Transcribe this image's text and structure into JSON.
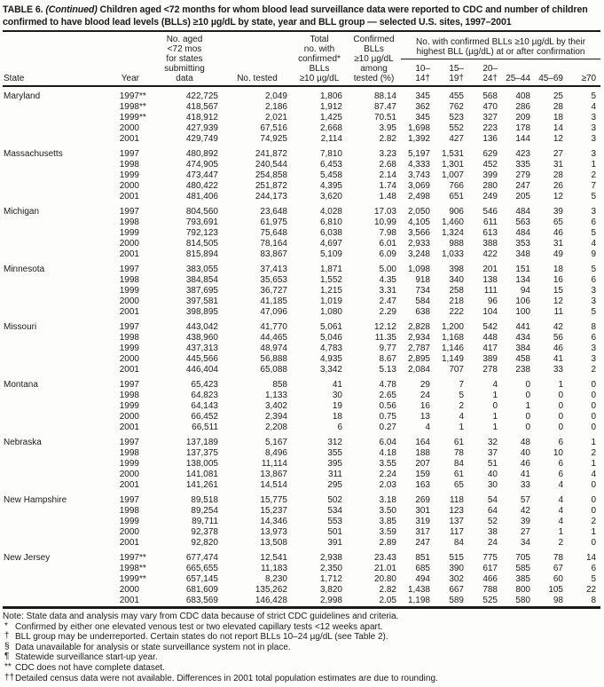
{
  "title": {
    "prefix": "TABLE 6.",
    "continued": "(Continued)",
    "rest": "Children aged <72 months for whom blood lead surveillance data were reported to CDC and number of children confirmed to have blood lead levels (BLLs) ≥10 µg/dL by state, year and BLL group — selected U.S. sites, 1997–2001"
  },
  "header": {
    "state": "State",
    "year": "Year",
    "population": "No. aged\n<72 mos\nfor states\nsubmitting\ndata",
    "tested": "No. tested",
    "total_confirmed": "Total\nno. with\nconfirmed*\nBLLs\n≥10 µg/dL",
    "pct_confirmed": "Confirmed\nBLLs\n≥10 µg/dL\namong\ntested (%)",
    "bll_group_header": "No. with confirmed BLLs ≥10 µg/dL by their\nhighest BLL (µg/dL) at or after confirmation",
    "bll_groups": [
      "10–14†",
      "15–19†",
      "20–24†",
      "25–44",
      "45–69",
      "≥70"
    ]
  },
  "states": [
    {
      "name": "Maryland",
      "rows": [
        {
          "year": "1997",
          "mark": "**",
          "cells": [
            "422,725",
            "2,049",
            "1,806",
            "88.14",
            "345",
            "455",
            "568",
            "408",
            "25",
            "5"
          ]
        },
        {
          "year": "1998",
          "mark": "**",
          "cells": [
            "418,567",
            "2,186",
            "1,912",
            "87.47",
            "362",
            "762",
            "470",
            "286",
            "28",
            "4"
          ]
        },
        {
          "year": "1999",
          "mark": "**",
          "cells": [
            "418,912",
            "2,021",
            "1,425",
            "70.51",
            "345",
            "523",
            "327",
            "209",
            "18",
            "3"
          ]
        },
        {
          "year": "2000",
          "mark": "",
          "cells": [
            "427,939",
            "67,516",
            "2,668",
            "3.95",
            "1,698",
            "552",
            "223",
            "178",
            "14",
            "3"
          ]
        },
        {
          "year": "2001",
          "mark": "",
          "cells": [
            "429,749",
            "74,925",
            "2,114",
            "2.82",
            "1,392",
            "427",
            "136",
            "144",
            "12",
            "3"
          ]
        }
      ]
    },
    {
      "name": "Massachusetts",
      "rows": [
        {
          "year": "1997",
          "mark": "",
          "cells": [
            "480,892",
            "241,872",
            "7,810",
            "3.23",
            "5,197",
            "1,531",
            "629",
            "423",
            "27",
            "3"
          ]
        },
        {
          "year": "1998",
          "mark": "",
          "cells": [
            "474,905",
            "240,544",
            "6,453",
            "2.68",
            "4,333",
            "1,301",
            "452",
            "335",
            "31",
            "1"
          ]
        },
        {
          "year": "1999",
          "mark": "",
          "cells": [
            "473,447",
            "254,858",
            "5,458",
            "2.14",
            "3,743",
            "1,007",
            "399",
            "279",
            "28",
            "2"
          ]
        },
        {
          "year": "2000",
          "mark": "",
          "cells": [
            "480,422",
            "251,872",
            "4,395",
            "1.74",
            "3,069",
            "766",
            "280",
            "247",
            "26",
            "7"
          ]
        },
        {
          "year": "2001",
          "mark": "",
          "cells": [
            "481,406",
            "244,173",
            "3,620",
            "1.48",
            "2,498",
            "651",
            "249",
            "205",
            "12",
            "5"
          ]
        }
      ]
    },
    {
      "name": "Michigan",
      "rows": [
        {
          "year": "1997",
          "mark": "",
          "cells": [
            "804,560",
            "23,648",
            "4,028",
            "17.03",
            "2,050",
            "906",
            "546",
            "484",
            "39",
            "3"
          ]
        },
        {
          "year": "1998",
          "mark": "",
          "cells": [
            "793,691",
            "61,975",
            "6,810",
            "10.99",
            "4,105",
            "1,460",
            "611",
            "563",
            "65",
            "6"
          ]
        },
        {
          "year": "1999",
          "mark": "",
          "cells": [
            "792,123",
            "75,648",
            "6,038",
            "7.98",
            "3,566",
            "1,324",
            "613",
            "484",
            "46",
            "5"
          ]
        },
        {
          "year": "2000",
          "mark": "",
          "cells": [
            "814,505",
            "78,164",
            "4,697",
            "6.01",
            "2,933",
            "988",
            "388",
            "353",
            "31",
            "4"
          ]
        },
        {
          "year": "2001",
          "mark": "",
          "cells": [
            "815,894",
            "83,867",
            "5,109",
            "6.09",
            "3,248",
            "1,033",
            "422",
            "348",
            "49",
            "9"
          ]
        }
      ]
    },
    {
      "name": "Minnesota",
      "rows": [
        {
          "year": "1997",
          "mark": "",
          "cells": [
            "383,055",
            "37,413",
            "1,871",
            "5.00",
            "1,098",
            "398",
            "201",
            "151",
            "18",
            "5"
          ]
        },
        {
          "year": "1998",
          "mark": "",
          "cells": [
            "384,854",
            "35,653",
            "1,552",
            "4.35",
            "918",
            "340",
            "138",
            "134",
            "16",
            "6"
          ]
        },
        {
          "year": "1999",
          "mark": "",
          "cells": [
            "387,695",
            "36,727",
            "1,215",
            "3.31",
            "734",
            "258",
            "111",
            "94",
            "15",
            "3"
          ]
        },
        {
          "year": "2000",
          "mark": "",
          "cells": [
            "397,581",
            "41,185",
            "1,019",
            "2.47",
            "584",
            "218",
            "96",
            "106",
            "12",
            "3"
          ]
        },
        {
          "year": "2001",
          "mark": "",
          "cells": [
            "398,895",
            "47,096",
            "1,080",
            "2.29",
            "638",
            "222",
            "104",
            "100",
            "11",
            "5"
          ]
        }
      ]
    },
    {
      "name": "Missouri",
      "rows": [
        {
          "year": "1997",
          "mark": "",
          "cells": [
            "443,042",
            "41,770",
            "5,061",
            "12.12",
            "2,828",
            "1,200",
            "542",
            "441",
            "42",
            "8"
          ]
        },
        {
          "year": "1998",
          "mark": "",
          "cells": [
            "438,960",
            "44,465",
            "5,046",
            "11.35",
            "2,934",
            "1,168",
            "448",
            "434",
            "56",
            "6"
          ]
        },
        {
          "year": "1999",
          "mark": "",
          "cells": [
            "437,313",
            "48,974",
            "4,783",
            "9.77",
            "2,787",
            "1,146",
            "417",
            "384",
            "46",
            "3"
          ]
        },
        {
          "year": "2000",
          "mark": "",
          "cells": [
            "445,566",
            "56,888",
            "4,935",
            "8.67",
            "2,895",
            "1,149",
            "389",
            "458",
            "41",
            "3"
          ]
        },
        {
          "year": "2001",
          "mark": "",
          "cells": [
            "446,404",
            "65,088",
            "3,342",
            "5.13",
            "2,084",
            "707",
            "278",
            "238",
            "33",
            "2"
          ]
        }
      ]
    },
    {
      "name": "Montana",
      "rows": [
        {
          "year": "1997",
          "mark": "",
          "cells": [
            "65,423",
            "858",
            "41",
            "4.78",
            "29",
            "7",
            "4",
            "0",
            "1",
            "0"
          ]
        },
        {
          "year": "1998",
          "mark": "",
          "cells": [
            "64,823",
            "1,133",
            "30",
            "2.65",
            "24",
            "5",
            "1",
            "0",
            "0",
            "0"
          ]
        },
        {
          "year": "1999",
          "mark": "",
          "cells": [
            "64,143",
            "3,402",
            "19",
            "0.56",
            "16",
            "2",
            "0",
            "1",
            "0",
            "0"
          ]
        },
        {
          "year": "2000",
          "mark": "",
          "cells": [
            "66,452",
            "2,394",
            "18",
            "0.75",
            "13",
            "4",
            "1",
            "0",
            "0",
            "0"
          ]
        },
        {
          "year": "2001",
          "mark": "",
          "cells": [
            "66,511",
            "2,208",
            "6",
            "0.27",
            "4",
            "1",
            "1",
            "0",
            "0",
            "0"
          ]
        }
      ]
    },
    {
      "name": "Nebraska",
      "rows": [
        {
          "year": "1997",
          "mark": "",
          "cells": [
            "137,189",
            "5,167",
            "312",
            "6.04",
            "164",
            "61",
            "32",
            "48",
            "6",
            "1"
          ]
        },
        {
          "year": "1998",
          "mark": "",
          "cells": [
            "137,375",
            "8,496",
            "355",
            "4.18",
            "188",
            "78",
            "37",
            "40",
            "10",
            "2"
          ]
        },
        {
          "year": "1999",
          "mark": "",
          "cells": [
            "138,005",
            "11,114",
            "395",
            "3.55",
            "207",
            "84",
            "51",
            "46",
            "6",
            "1"
          ]
        },
        {
          "year": "2000",
          "mark": "",
          "cells": [
            "141,081",
            "13,867",
            "311",
            "2.24",
            "159",
            "61",
            "40",
            "41",
            "6",
            "4"
          ]
        },
        {
          "year": "2001",
          "mark": "",
          "cells": [
            "141,261",
            "14,514",
            "295",
            "2.03",
            "163",
            "65",
            "30",
            "33",
            "4",
            "0"
          ]
        }
      ]
    },
    {
      "name": "New Hampshire",
      "rows": [
        {
          "year": "1997",
          "mark": "",
          "cells": [
            "89,518",
            "15,775",
            "502",
            "3.18",
            "269",
            "118",
            "54",
            "57",
            "4",
            "0"
          ]
        },
        {
          "year": "1998",
          "mark": "",
          "cells": [
            "89,254",
            "15,237",
            "534",
            "3.50",
            "301",
            "123",
            "64",
            "42",
            "4",
            "0"
          ]
        },
        {
          "year": "1999",
          "mark": "",
          "cells": [
            "89,711",
            "14,346",
            "553",
            "3.85",
            "319",
            "137",
            "52",
            "39",
            "4",
            "2"
          ]
        },
        {
          "year": "2000",
          "mark": "",
          "cells": [
            "92,378",
            "13,973",
            "501",
            "3.59",
            "317",
            "117",
            "38",
            "27",
            "1",
            "1"
          ]
        },
        {
          "year": "2001",
          "mark": "",
          "cells": [
            "92,820",
            "13,508",
            "391",
            "2.89",
            "247",
            "84",
            "24",
            "34",
            "2",
            "0"
          ]
        }
      ]
    },
    {
      "name": "New Jersey",
      "rows": [
        {
          "year": "1997",
          "mark": "**",
          "cells": [
            "677,474",
            "12,541",
            "2,938",
            "23.43",
            "851",
            "515",
            "775",
            "705",
            "78",
            "14"
          ]
        },
        {
          "year": "1998",
          "mark": "**",
          "cells": [
            "665,655",
            "11,183",
            "2,350",
            "21.01",
            "685",
            "390",
            "617",
            "585",
            "67",
            "6"
          ]
        },
        {
          "year": "1999",
          "mark": "**",
          "cells": [
            "657,145",
            "8,230",
            "1,712",
            "20.80",
            "494",
            "302",
            "466",
            "385",
            "60",
            "5"
          ]
        },
        {
          "year": "2000",
          "mark": "",
          "cells": [
            "681,609",
            "135,262",
            "3,820",
            "2.82",
            "1,438",
            "667",
            "788",
            "800",
            "105",
            "22"
          ]
        },
        {
          "year": "2001",
          "mark": "",
          "cells": [
            "683,569",
            "146,428",
            "2,998",
            "2.05",
            "1,198",
            "589",
            "525",
            "580",
            "98",
            "8"
          ]
        }
      ]
    }
  ],
  "note": "Note: State data and analysis may vary from CDC data because of strict CDC guidelines and criteria.",
  "footnotes": [
    {
      "marker": "*",
      "text": "Confirmed by either one elevated venous test or two elevated capillary tests <12 weeks apart."
    },
    {
      "marker": "†",
      "text": "BLL group may be underreported. Certain states do not report BLLs 10–24 µg/dL (see Table 2)."
    },
    {
      "marker": "§",
      "text": "Data unavailable for analysis or state surveillance system not in place."
    },
    {
      "marker": "¶",
      "text": "Statewide surveillance start-up year."
    },
    {
      "marker": "**",
      "text": "CDC does not have complete dataset."
    },
    {
      "marker": "††",
      "text": "Detailed census data were not available. Differences in 2001 total population estimates are due to rounding."
    }
  ]
}
